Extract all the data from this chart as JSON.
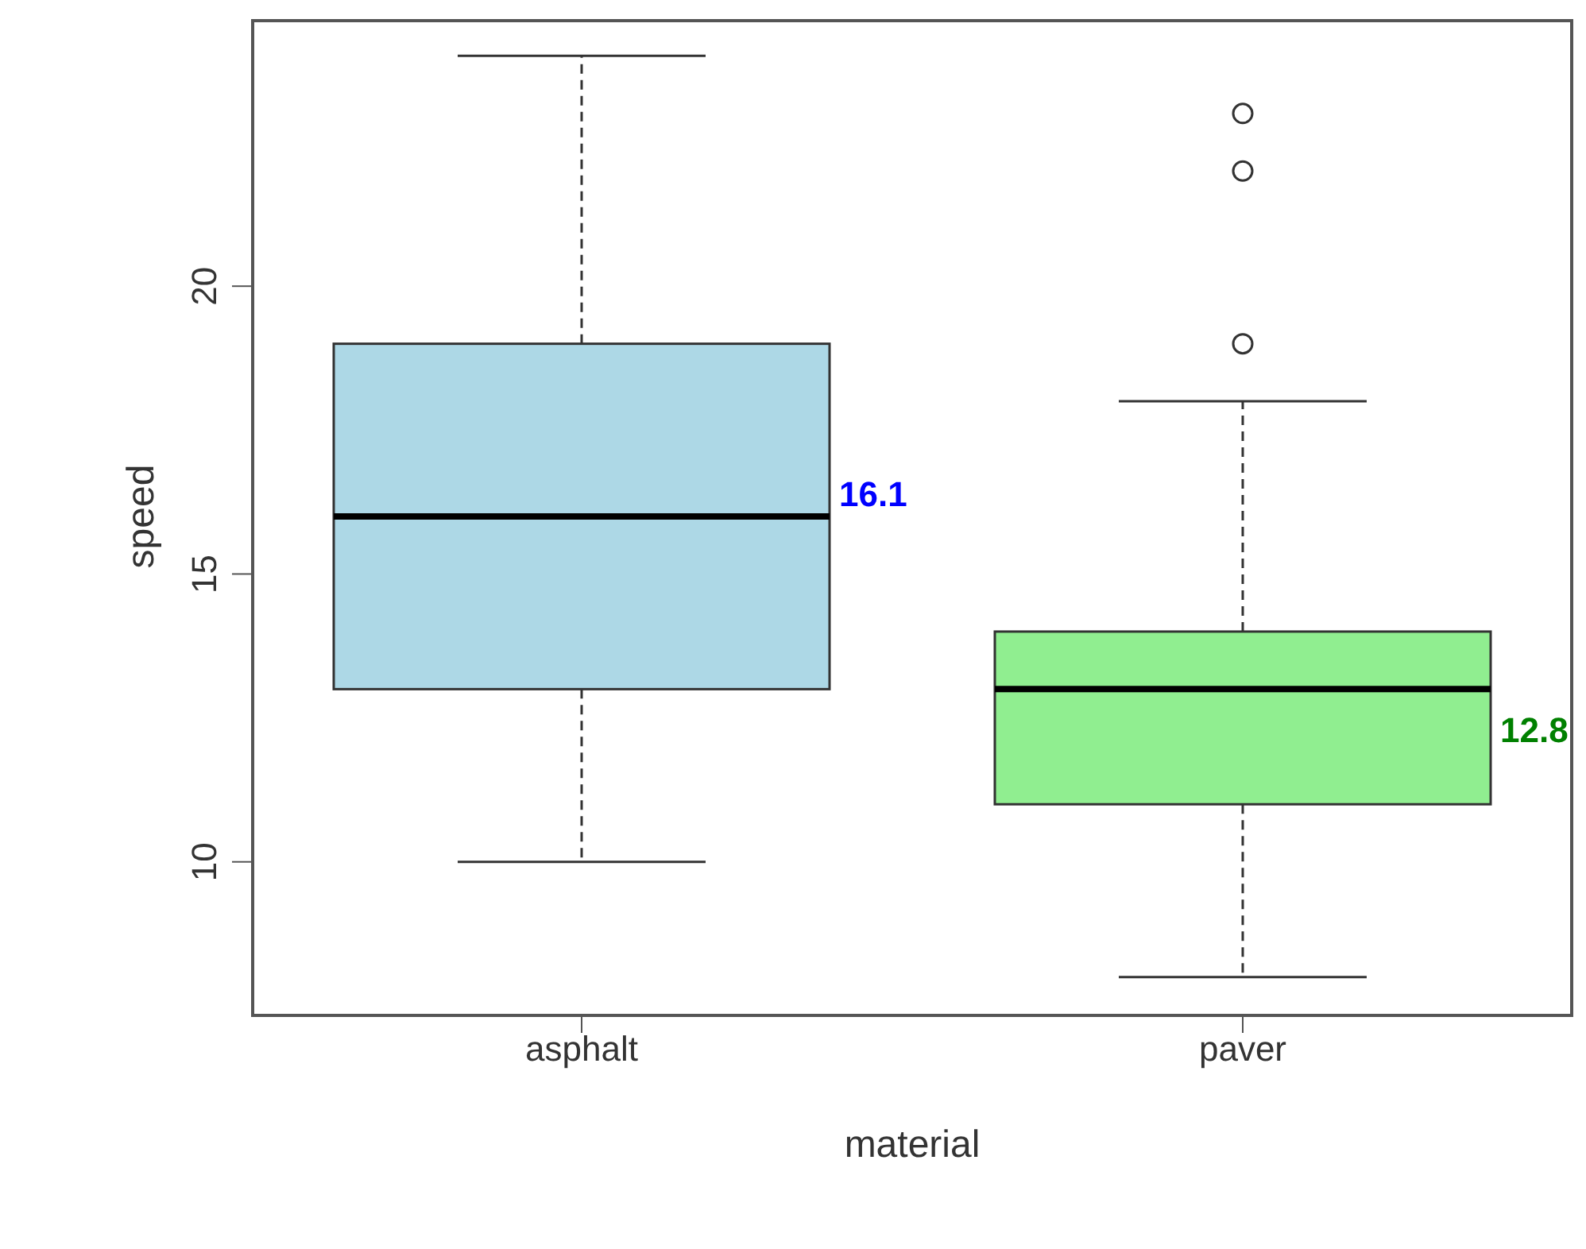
{
  "chart_data": {
    "type": "box",
    "xlabel": "material",
    "ylabel": "speed",
    "categories": [
      "asphalt",
      "paver"
    ],
    "colors": [
      "#add8e6",
      "#90ee90"
    ],
    "boxes": [
      {
        "low": 10,
        "q1": 13,
        "median": 16,
        "q3": 19,
        "high": 24
      },
      {
        "low": 8,
        "q1": 11,
        "median": 13,
        "q3": 14,
        "high": 18,
        "outliers": [
          19,
          22,
          23
        ]
      }
    ],
    "ylim": [
      7.36,
      24.64
    ],
    "yticks": [
      10,
      15,
      20
    ],
    "annotations": [
      "16.1",
      "12.8"
    ]
  }
}
